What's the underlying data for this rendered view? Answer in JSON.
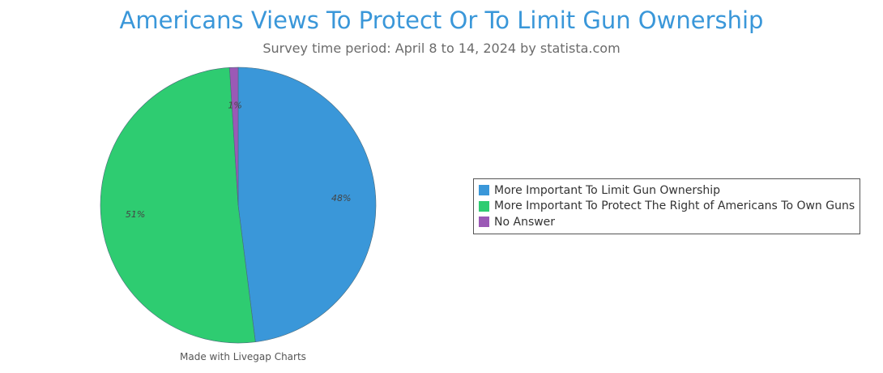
{
  "chart_data": {
    "type": "pie",
    "title": "Americans Views To Protect Or To Limit Gun Ownership",
    "subtitle": "Survey time period: April 8 to 14, 2024 by statista.com",
    "slices": [
      {
        "label": "More Important To Limit Gun Ownership",
        "value": 48,
        "display": "48%",
        "color": "#3a97d9"
      },
      {
        "label": "More Important To Protect The Right of Americans To Own Guns",
        "value": 51,
        "display": "51%",
        "color": "#2ecc71"
      },
      {
        "label": "No Answer",
        "value": 1,
        "display": "1%",
        "color": "#9b59b6"
      }
    ],
    "legend_position": "right",
    "credit": "Made with Livegap Charts"
  }
}
